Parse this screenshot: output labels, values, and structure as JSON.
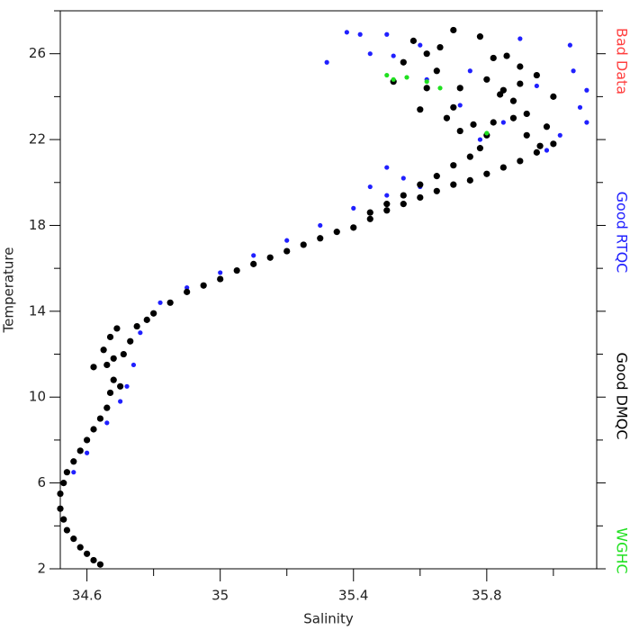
{
  "chart_data": {
    "type": "scatter",
    "xlabel": "Salinity",
    "ylabel": "Temperature",
    "xlim": [
      34.52,
      36.13
    ],
    "ylim": [
      2,
      28
    ],
    "xticks": [
      34.6,
      35.0,
      35.4,
      35.8
    ],
    "yticks": [
      2,
      6,
      10,
      14,
      18,
      22,
      26
    ],
    "xminor": [
      34.8,
      35.2,
      35.6,
      36.0
    ],
    "yminor": [
      4,
      8,
      12,
      16,
      20,
      24,
      28
    ],
    "series": [
      {
        "name": "Bad Data",
        "color": "#ff4040",
        "x": [],
        "values": []
      },
      {
        "name": "Good RTQC",
        "color": "#2020ff",
        "x": [
          35.32,
          35.38,
          35.42,
          35.45,
          35.5,
          35.52,
          35.6,
          36.05,
          36.08,
          36.1,
          36.02,
          35.98,
          35.95,
          36.06,
          35.9,
          35.75,
          35.6,
          35.5,
          35.4,
          35.3,
          35.2,
          35.1,
          35.0,
          34.9,
          34.82,
          34.76,
          34.74,
          34.72,
          34.7,
          34.66,
          34.6,
          34.56,
          35.45,
          35.5,
          35.85,
          35.78,
          35.72,
          36.1,
          35.62,
          35.55
        ],
        "values": [
          25.6,
          27.0,
          26.9,
          26.0,
          26.9,
          25.9,
          26.4,
          26.4,
          23.5,
          22.8,
          22.2,
          21.5,
          24.5,
          25.2,
          26.7,
          25.2,
          19.8,
          19.4,
          18.8,
          18.0,
          17.3,
          16.6,
          15.8,
          15.1,
          14.4,
          13.0,
          11.5,
          10.5,
          9.8,
          8.8,
          7.4,
          6.5,
          19.8,
          20.7,
          22.8,
          22.0,
          23.6,
          24.3,
          24.8,
          20.2
        ]
      },
      {
        "name": "Good DMQC",
        "color": "#000000",
        "x": [
          34.64,
          34.62,
          34.6,
          34.58,
          34.56,
          34.54,
          34.53,
          34.52,
          34.52,
          34.53,
          34.54,
          34.56,
          34.58,
          34.6,
          34.62,
          34.64,
          34.66,
          34.67,
          34.68,
          34.66,
          34.65,
          34.67,
          34.69,
          34.71,
          34.7,
          34.62,
          34.68,
          34.73,
          34.75,
          34.78,
          34.8,
          34.85,
          34.9,
          34.95,
          35.0,
          35.05,
          35.1,
          35.15,
          35.2,
          35.25,
          35.3,
          35.35,
          35.4,
          35.45,
          35.5,
          35.55,
          35.6,
          35.65,
          35.7,
          35.75,
          35.8,
          35.85,
          35.9,
          35.95,
          36.0,
          35.98,
          35.92,
          35.88,
          35.85,
          35.82,
          35.8,
          35.78,
          35.75,
          35.7,
          35.65,
          35.6,
          35.55,
          35.5,
          35.45,
          35.7,
          35.72,
          35.8,
          35.82,
          35.9,
          35.95,
          36.0,
          35.65,
          35.62,
          35.58,
          35.55,
          35.52,
          35.6,
          35.68,
          35.72,
          35.76,
          35.84,
          35.88,
          35.92,
          35.96,
          35.78,
          35.7,
          35.66,
          35.62,
          35.86,
          35.9
        ],
        "values": [
          2.2,
          2.4,
          2.7,
          3.0,
          3.4,
          3.8,
          4.3,
          4.8,
          5.5,
          6.0,
          6.5,
          7.0,
          7.5,
          8.0,
          8.5,
          9.0,
          9.5,
          10.2,
          10.8,
          11.5,
          12.2,
          12.8,
          13.2,
          12.0,
          10.5,
          11.4,
          11.8,
          12.6,
          13.3,
          13.6,
          13.9,
          14.4,
          14.9,
          15.2,
          15.5,
          15.9,
          16.2,
          16.5,
          16.8,
          17.1,
          17.4,
          17.7,
          17.9,
          18.3,
          18.7,
          19.0,
          19.3,
          19.6,
          19.9,
          20.1,
          20.4,
          20.7,
          21.0,
          21.4,
          21.8,
          22.6,
          23.2,
          23.8,
          24.3,
          22.8,
          22.2,
          21.6,
          21.2,
          20.8,
          20.3,
          19.9,
          19.4,
          19.0,
          18.6,
          23.5,
          24.4,
          24.8,
          25.8,
          25.4,
          25.0,
          24.0,
          25.2,
          26.0,
          26.6,
          25.6,
          24.7,
          23.4,
          23.0,
          22.4,
          22.7,
          24.1,
          23.0,
          22.2,
          21.7,
          26.8,
          27.1,
          26.3,
          24.4,
          25.9,
          24.6
        ]
      },
      {
        "name": "WGHC",
        "color": "#20e020",
        "x": [
          35.5,
          35.52,
          35.56,
          35.62,
          35.66,
          35.8
        ],
        "values": [
          25.0,
          24.8,
          24.9,
          24.7,
          24.4,
          22.3
        ]
      }
    ]
  }
}
